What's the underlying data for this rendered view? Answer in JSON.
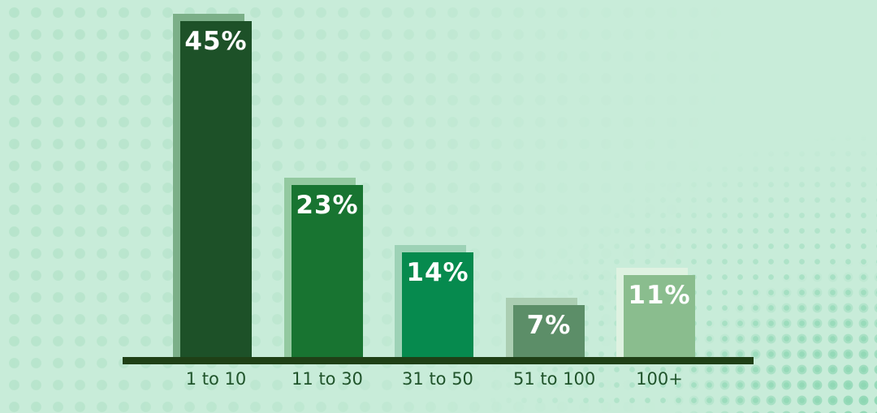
{
  "chart_data": {
    "type": "bar",
    "title": "",
    "xlabel": "",
    "ylabel": "",
    "categories": [
      "1 to 10",
      "11 to 30",
      "31 to 50",
      "51 to 100",
      "100+"
    ],
    "values": [
      45,
      23,
      14,
      7,
      11
    ],
    "value_labels": [
      "45%",
      "23%",
      "14%",
      "7%",
      "11%"
    ],
    "bar_colors": [
      "#1d5128",
      "#187431",
      "#068a4e",
      "#5c8e68",
      "#8abd8e"
    ],
    "bar_shadow_colors": [
      "#7baf88",
      "#93c9a0",
      "#9dd2b6",
      "#abceb2",
      "#def2e1"
    ],
    "grid": false,
    "legend": false,
    "axis": {
      "baseline_visible": true,
      "baseline_color": "#1f4016",
      "y_axis_visible": false,
      "tick_label_color": "#20542b"
    },
    "background_color": "#c8ecd9",
    "dot_pattern_colors": {
      "left": "#b5e3ca",
      "corner": "#90d8b5"
    },
    "value_text_color": "#ffffff"
  }
}
